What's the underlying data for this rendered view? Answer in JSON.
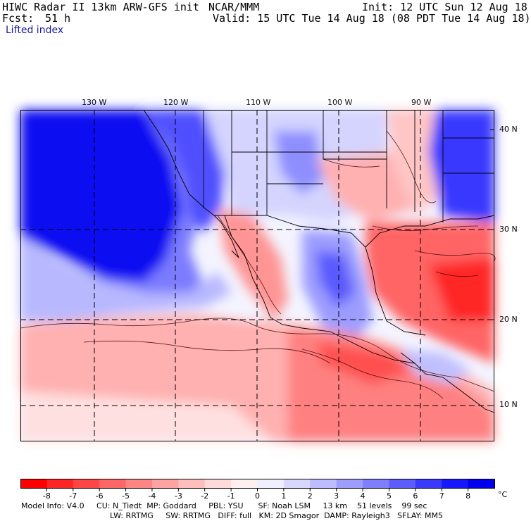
{
  "header": {
    "title_left": "HIWC Radar II 13km ARW-GFS init",
    "org": "NCAR/MMM",
    "init": "Init: 12 UTC Sun 12 Aug 18",
    "fcst_label": "Fcst:",
    "fcst_value": "51 h",
    "valid": "Valid: 15 UTC Tue 14 Aug 18 (08 PDT Tue 14 Aug 18)",
    "field": "Lifted index"
  },
  "map": {
    "longitude_labels": [
      "130 W",
      "120 W",
      "110 W",
      "100 W",
      "90 W"
    ],
    "latitude_labels": [
      "40 N",
      "30 N",
      "20 N",
      "10 N"
    ],
    "background_color": "#ffffff"
  },
  "colorbar": {
    "tick_labels": [
      "-8",
      "-7",
      "-6",
      "-5",
      "-4",
      "-3",
      "-2",
      "-1",
      "0",
      "1",
      "2",
      "3",
      "4",
      "5",
      "6",
      "7",
      "8"
    ],
    "unit": "°C",
    "colors": [
      "#ff0000",
      "#ff2525",
      "#ff4646",
      "#ff6767",
      "#ff8484",
      "#ffa2a2",
      "#ffbebe",
      "#ffdada",
      "#ffefef",
      "#efefff",
      "#d8d8ff",
      "#bcbcff",
      "#9d9dff",
      "#7e7eff",
      "#5c5cff",
      "#3a3aff",
      "#1818ff",
      "#0000ee"
    ]
  },
  "footer": {
    "line1": "Model Info: V4.0     CU: N_Tiedt  MP: Goddard     PBL: YSU      SF: Noah LSM     13 km    51 levels    99 sec",
    "line2": "LW: RRTMG     SW: RRTMG   DIFF: full   KM: 2D Smagor  DAMP: Rayleigh3   SFLAY: MM5"
  }
}
